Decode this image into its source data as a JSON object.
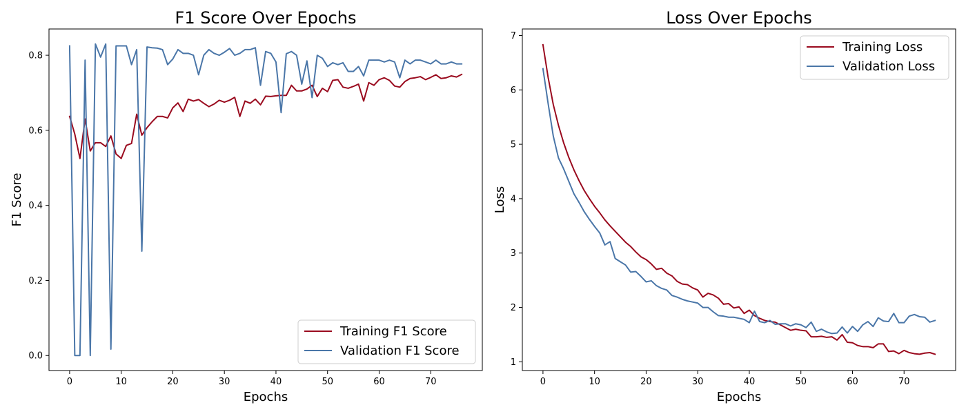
{
  "chart_data": [
    {
      "type": "line",
      "title": "F1 Score Over Epochs",
      "xlabel": "Epochs",
      "ylabel": "F1 Score",
      "xlim": [
        -4,
        80
      ],
      "ylim": [
        -0.04,
        0.87
      ],
      "xticks": [
        0,
        10,
        20,
        30,
        40,
        50,
        60,
        70
      ],
      "yticks": [
        0.0,
        0.2,
        0.4,
        0.6,
        0.8
      ],
      "ytick_labels": [
        "0.0",
        "0.2",
        "0.4",
        "0.6",
        "0.8"
      ],
      "grid": false,
      "legend_position": "lower-right",
      "x": [
        0,
        1,
        2,
        3,
        4,
        5,
        6,
        7,
        8,
        9,
        10,
        11,
        12,
        13,
        14,
        15,
        16,
        17,
        18,
        19,
        20,
        21,
        22,
        23,
        24,
        25,
        26,
        27,
        28,
        29,
        30,
        31,
        32,
        33,
        34,
        35,
        36,
        37,
        38,
        39,
        40,
        41,
        42,
        43,
        44,
        45,
        46,
        47,
        48,
        49,
        50,
        51,
        52,
        53,
        54,
        55,
        56,
        57,
        58,
        59,
        60,
        61,
        62,
        63,
        64,
        65,
        66,
        67,
        68,
        69,
        70,
        71,
        72,
        73,
        74,
        75,
        76
      ],
      "series": [
        {
          "name": "Training F1 Score",
          "color": "#9a0a1e",
          "values": [
            0.637,
            0.59,
            0.525,
            0.63,
            0.545,
            0.567,
            0.567,
            0.557,
            0.585,
            0.537,
            0.525,
            0.56,
            0.565,
            0.643,
            0.587,
            0.607,
            0.623,
            0.637,
            0.637,
            0.633,
            0.66,
            0.673,
            0.65,
            0.683,
            0.678,
            0.682,
            0.672,
            0.663,
            0.67,
            0.68,
            0.675,
            0.68,
            0.688,
            0.637,
            0.678,
            0.672,
            0.683,
            0.668,
            0.691,
            0.69,
            0.692,
            0.693,
            0.693,
            0.72,
            0.705,
            0.705,
            0.71,
            0.72,
            0.69,
            0.712,
            0.703,
            0.733,
            0.735,
            0.715,
            0.712,
            0.717,
            0.723,
            0.678,
            0.727,
            0.72,
            0.735,
            0.74,
            0.733,
            0.718,
            0.715,
            0.73,
            0.738,
            0.74,
            0.743,
            0.735,
            0.741,
            0.748,
            0.738,
            0.74,
            0.745,
            0.742,
            0.749
          ]
        },
        {
          "name": "Validation F1 Score",
          "color": "#4a76a8",
          "values": [
            0.825,
            0.0,
            0.0,
            0.787,
            0.0,
            0.83,
            0.795,
            0.83,
            0.017,
            0.825,
            0.825,
            0.825,
            0.775,
            0.815,
            0.278,
            0.822,
            0.82,
            0.819,
            0.815,
            0.775,
            0.79,
            0.815,
            0.805,
            0.805,
            0.8,
            0.748,
            0.8,
            0.815,
            0.805,
            0.8,
            0.808,
            0.818,
            0.8,
            0.805,
            0.815,
            0.815,
            0.82,
            0.72,
            0.81,
            0.805,
            0.782,
            0.647,
            0.804,
            0.81,
            0.8,
            0.723,
            0.785,
            0.687,
            0.8,
            0.792,
            0.77,
            0.78,
            0.775,
            0.78,
            0.757,
            0.757,
            0.77,
            0.745,
            0.787,
            0.787,
            0.787,
            0.782,
            0.787,
            0.782,
            0.74,
            0.787,
            0.777,
            0.787,
            0.787,
            0.782,
            0.777,
            0.787,
            0.777,
            0.777,
            0.782,
            0.777,
            0.777
          ]
        }
      ]
    },
    {
      "type": "line",
      "title": "Loss Over Epochs",
      "xlabel": "Epochs",
      "ylabel": "Loss",
      "xlim": [
        -4,
        80
      ],
      "ylim": [
        0.84,
        7.12
      ],
      "xticks": [
        0,
        10,
        20,
        30,
        40,
        50,
        60,
        70
      ],
      "yticks": [
        1,
        2,
        3,
        4,
        5,
        6,
        7
      ],
      "ytick_labels": [
        "1",
        "2",
        "3",
        "4",
        "5",
        "6",
        "7"
      ],
      "grid": false,
      "legend_position": "upper-right",
      "x": [
        0,
        1,
        2,
        3,
        4,
        5,
        6,
        7,
        8,
        9,
        10,
        11,
        12,
        13,
        14,
        15,
        16,
        17,
        18,
        19,
        20,
        21,
        22,
        23,
        24,
        25,
        26,
        27,
        28,
        29,
        30,
        31,
        32,
        33,
        34,
        35,
        36,
        37,
        38,
        39,
        40,
        41,
        42,
        43,
        44,
        45,
        46,
        47,
        48,
        49,
        50,
        51,
        52,
        53,
        54,
        55,
        56,
        57,
        58,
        59,
        60,
        61,
        62,
        63,
        64,
        65,
        66,
        67,
        68,
        69,
        70,
        71,
        72,
        73,
        74,
        75,
        76
      ],
      "series": [
        {
          "name": "Training Loss",
          "color": "#9a0a1e",
          "values": [
            6.83,
            6.23,
            5.73,
            5.35,
            5.03,
            4.76,
            4.53,
            4.33,
            4.15,
            4.0,
            3.86,
            3.74,
            3.61,
            3.5,
            3.4,
            3.3,
            3.2,
            3.12,
            3.02,
            2.93,
            2.88,
            2.8,
            2.7,
            2.72,
            2.63,
            2.58,
            2.48,
            2.43,
            2.42,
            2.36,
            2.32,
            2.19,
            2.26,
            2.23,
            2.17,
            2.06,
            2.07,
            1.99,
            2.01,
            1.89,
            1.95,
            1.85,
            1.8,
            1.76,
            1.74,
            1.73,
            1.68,
            1.63,
            1.58,
            1.6,
            1.58,
            1.57,
            1.46,
            1.46,
            1.47,
            1.45,
            1.46,
            1.4,
            1.5,
            1.36,
            1.35,
            1.3,
            1.28,
            1.28,
            1.26,
            1.33,
            1.33,
            1.19,
            1.2,
            1.15,
            1.21,
            1.17,
            1.15,
            1.14,
            1.16,
            1.17,
            1.14
          ]
        },
        {
          "name": "Validation Loss",
          "color": "#4a76a8",
          "values": [
            6.39,
            5.75,
            5.15,
            4.75,
            4.55,
            4.32,
            4.09,
            3.93,
            3.76,
            3.62,
            3.49,
            3.37,
            3.15,
            3.21,
            2.9,
            2.84,
            2.78,
            2.65,
            2.66,
            2.57,
            2.47,
            2.49,
            2.4,
            2.35,
            2.32,
            2.22,
            2.19,
            2.15,
            2.12,
            2.1,
            2.08,
            2.0,
            2.0,
            1.92,
            1.85,
            1.84,
            1.82,
            1.82,
            1.8,
            1.78,
            1.72,
            1.93,
            1.74,
            1.72,
            1.76,
            1.69,
            1.7,
            1.7,
            1.66,
            1.7,
            1.68,
            1.63,
            1.73,
            1.56,
            1.6,
            1.55,
            1.52,
            1.53,
            1.64,
            1.53,
            1.65,
            1.56,
            1.68,
            1.74,
            1.65,
            1.81,
            1.75,
            1.74,
            1.89,
            1.72,
            1.72,
            1.84,
            1.87,
            1.83,
            1.82,
            1.73,
            1.76
          ]
        }
      ]
    }
  ]
}
